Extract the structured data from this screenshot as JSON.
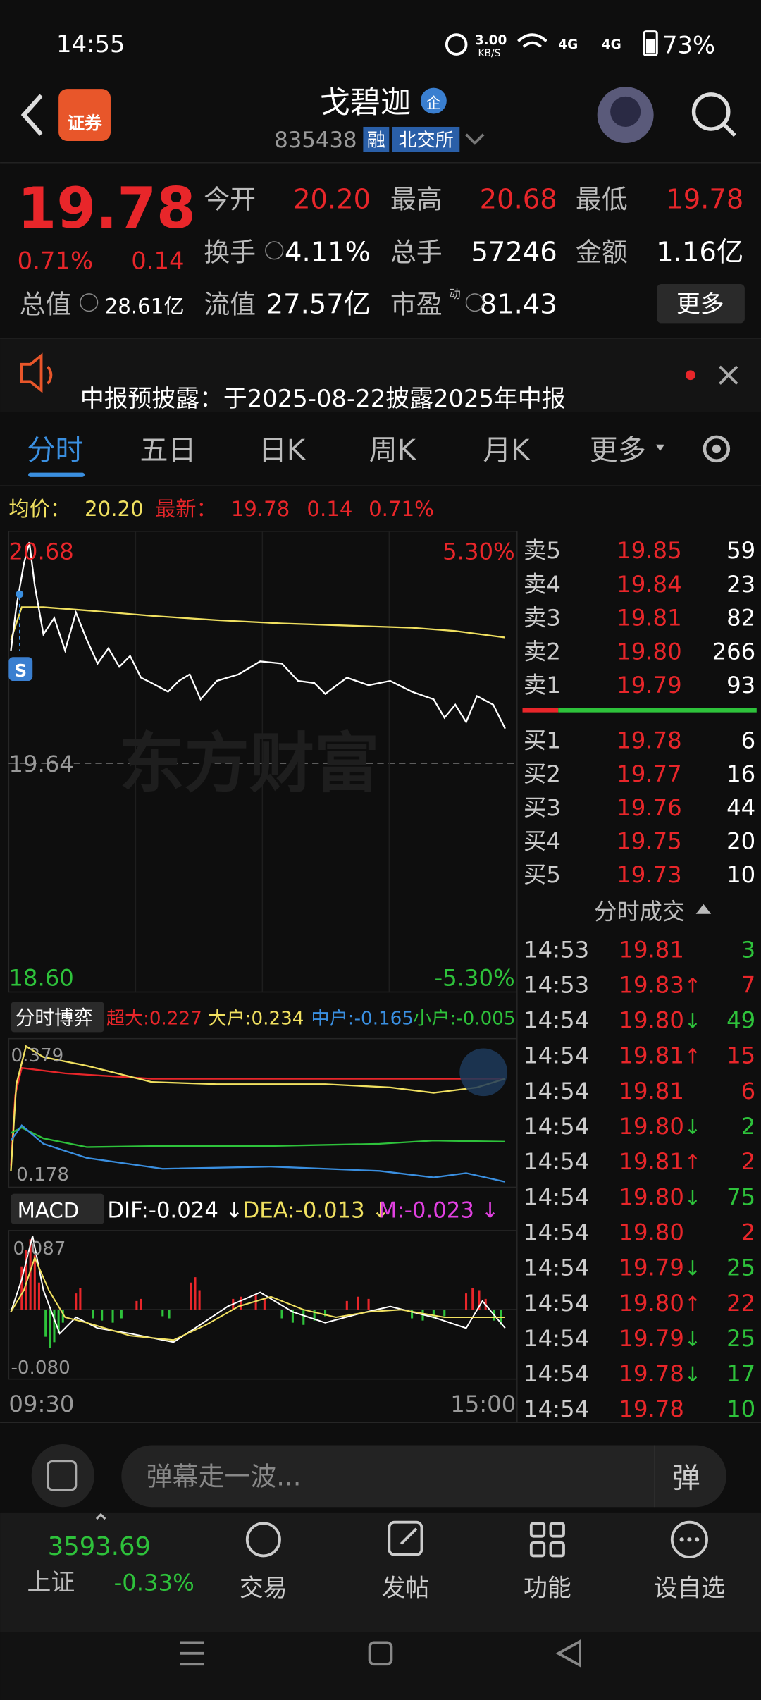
{
  "status_bar": {
    "time": "14:55",
    "net_speed": "3.00",
    "net_unit": "KB/S",
    "signal_1": "4G",
    "signal_2": "4G",
    "battery": "73%"
  },
  "header": {
    "logo": "证券",
    "name": "戈碧迦",
    "badge": "企",
    "code": "835438",
    "tags": [
      "融",
      "北交所"
    ]
  },
  "quote": {
    "price": "19.78",
    "change_pct": "0.71%",
    "change": "0.14",
    "more": "更多",
    "fields": [
      {
        "label": "今开",
        "value": "20.20",
        "color": "#e8262a"
      },
      {
        "label": "最高",
        "value": "20.68",
        "color": "#e8262a"
      },
      {
        "label": "最低",
        "value": "19.78",
        "color": "#e8262a"
      },
      {
        "label": "换手",
        "value": "4.11%",
        "color": "#ffffff"
      },
      {
        "label": "总手",
        "value": "57246",
        "color": "#ffffff"
      },
      {
        "label": "金额",
        "value": "1.16亿",
        "color": "#ffffff"
      },
      {
        "label": "总值",
        "value": "28.61亿",
        "color": "#ffffff"
      },
      {
        "label": "流值",
        "value": "27.57亿",
        "color": "#ffffff"
      },
      {
        "label": "市盈",
        "sup": "动",
        "value": "81.43",
        "color": "#ffffff"
      }
    ]
  },
  "notice": {
    "text": "中报预披露：于2025-08-22披露2025年中报"
  },
  "tabs": [
    "分时",
    "五日",
    "日K",
    "周K",
    "月K",
    "更多"
  ],
  "chart_info": {
    "avg_label": "均价：",
    "avg": "20.20",
    "last_label": "最新：",
    "last": "19.78",
    "change": "0.14",
    "change_pct": "0.71%"
  },
  "chart_labels": {
    "high": "20.68",
    "high_pct": "5.30%",
    "base": "19.64",
    "low": "18.60",
    "low_pct": "-5.30%",
    "watermark": "东方财富",
    "marker": "S",
    "start": "09:30",
    "end": "15:00"
  },
  "order_book": {
    "sell": [
      {
        "label": "卖5",
        "price": "19.85",
        "volume": "59"
      },
      {
        "label": "卖4",
        "price": "19.84",
        "volume": "23"
      },
      {
        "label": "卖3",
        "price": "19.81",
        "volume": "82"
      },
      {
        "label": "卖2",
        "price": "19.80",
        "volume": "266"
      },
      {
        "label": "卖1",
        "price": "19.79",
        "volume": "93"
      }
    ],
    "buy": [
      {
        "label": "买1",
        "price": "19.78",
        "volume": "6"
      },
      {
        "label": "买2",
        "price": "19.77",
        "volume": "16"
      },
      {
        "label": "买3",
        "price": "19.76",
        "volume": "44"
      },
      {
        "label": "买4",
        "price": "19.75",
        "volume": "20"
      },
      {
        "label": "买5",
        "price": "19.73",
        "volume": "10"
      }
    ]
  },
  "trades": {
    "title": "分时成交",
    "rows": [
      {
        "time": "14:53",
        "price": "19.81",
        "volume": "3",
        "color": "#2ec23b"
      },
      {
        "time": "14:53",
        "price": "19.83",
        "arrow": "↑",
        "volume": "7",
        "color": "#e8262a"
      },
      {
        "time": "14:54",
        "price": "19.80",
        "arrow": "↓",
        "volume": "49",
        "color": "#2ec23b"
      },
      {
        "time": "14:54",
        "price": "19.81",
        "arrow": "↑",
        "volume": "15",
        "color": "#e8262a"
      },
      {
        "time": "14:54",
        "price": "19.81",
        "volume": "6",
        "color": "#e8262a"
      },
      {
        "time": "14:54",
        "price": "19.80",
        "arrow": "↓",
        "volume": "2",
        "color": "#2ec23b"
      },
      {
        "time": "14:54",
        "price": "19.81",
        "arrow": "↑",
        "volume": "2",
        "color": "#e8262a"
      },
      {
        "time": "14:54",
        "price": "19.80",
        "arrow": "↓",
        "volume": "75",
        "color": "#2ec23b"
      },
      {
        "time": "14:54",
        "price": "19.80",
        "volume": "2",
        "color": "#e8262a"
      },
      {
        "time": "14:54",
        "price": "19.79",
        "arrow": "↓",
        "volume": "25",
        "color": "#2ec23b"
      },
      {
        "time": "14:54",
        "price": "19.80",
        "arrow": "↑",
        "volume": "22",
        "color": "#e8262a"
      },
      {
        "time": "14:54",
        "price": "19.79",
        "arrow": "↓",
        "volume": "25",
        "color": "#2ec23b"
      },
      {
        "time": "14:54",
        "price": "19.78",
        "arrow": "↓",
        "volume": "17",
        "color": "#2ec23b"
      },
      {
        "time": "14:54",
        "price": "19.78",
        "volume": "10",
        "color": "#2ec23b"
      }
    ]
  },
  "flow_panel": {
    "selector": "分时博弈",
    "items": [
      {
        "text": "超大:0.227",
        "color": "#e8262a"
      },
      {
        "text": "大户:0.234",
        "color": "#f0e060"
      },
      {
        "text": "中户:-0.165",
        "color": "#3a8fe0"
      },
      {
        "text": "小户:-0.005",
        "color": "#2ec23b"
      }
    ],
    "top": "0.379",
    "bottom": "0.178"
  },
  "macd_panel": {
    "selector": "MACD",
    "items": [
      {
        "text": "DIF:-0.024 ↓",
        "color": "#ffffff"
      },
      {
        "text": "DEA:-0.013 ↓",
        "color": "#f0e060"
      },
      {
        "text": "M:-0.023 ↓",
        "color": "#e040e0"
      }
    ],
    "top": "0.087",
    "bottom": "-0.080"
  },
  "comment_bar": {
    "placeholder": "弹幕走一波...",
    "button": "弹"
  },
  "bottom_nav": {
    "index_value": "3593.69",
    "index_name": "上证",
    "index_change": "-0.33%",
    "items": [
      "交易",
      "发帖",
      "功能",
      "设自选"
    ]
  }
}
